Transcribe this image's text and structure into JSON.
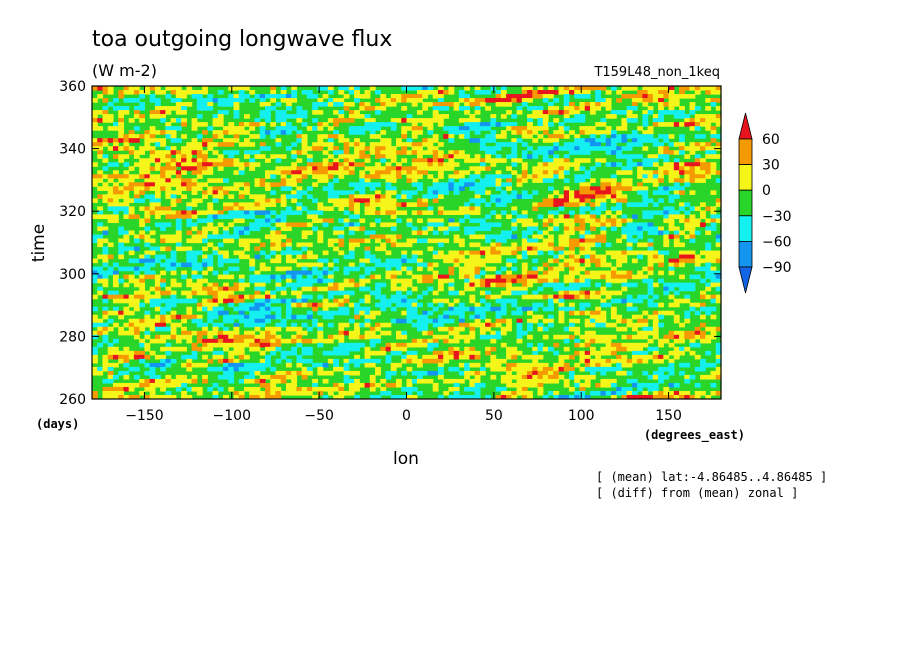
{
  "chart_data": {
    "type": "heatmap",
    "title": "toa outgoing longwave flux",
    "units": "(W m-2)",
    "run_label": "T159L48_non_1keq",
    "xlabel": "lon",
    "xunits": "(degrees_east)",
    "ylabel": "time",
    "yunits": "(days)",
    "xlim": [
      -180,
      180
    ],
    "ylim": [
      260,
      360
    ],
    "xticks": [
      -150,
      -100,
      -50,
      0,
      50,
      100,
      150
    ],
    "yticks": [
      260,
      280,
      300,
      320,
      340,
      360
    ],
    "colorbar": {
      "levels": [
        60,
        30,
        0,
        -30,
        -60,
        -90
      ],
      "colors": [
        "#e8141e",
        "#f59a00",
        "#f5f51a",
        "#2ad52a",
        "#14f0f0",
        "#1496f0",
        "#1464e6"
      ]
    },
    "notes": [
      "[ (mean) lat:-4.86485..4.86485 ]",
      "[ (diff) from (mean) zonal ]"
    ]
  }
}
